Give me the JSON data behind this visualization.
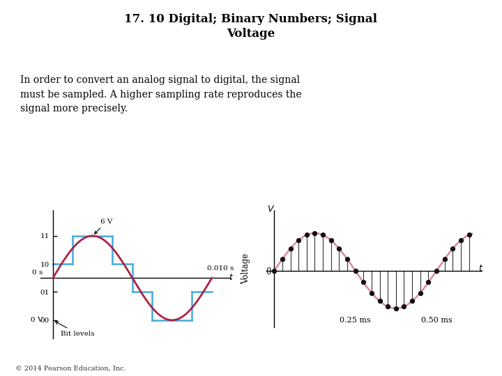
{
  "title": "17. 10 Digital; Binary Numbers; Signal\nVoltage",
  "body_text": "In order to convert an analog signal to digital, the signal\nmust be sampled. A higher sampling rate reproduces the\nsignal more precisely.",
  "copyright": "© 2014 Pearson Education, Inc.",
  "fig_bg": "#ffffff",
  "left_plot": {
    "sine_color": "#aa2244",
    "step_color": "#44aadd",
    "sine_lw": 2.0,
    "step_lw": 1.8,
    "ytick_labels": [
      "00",
      "01",
      "10",
      "11"
    ],
    "ytick_values": [
      -3,
      -1,
      1,
      3
    ]
  },
  "right_plot": {
    "sine_color": "#e08898",
    "dot_color": "#111111",
    "line_color": "#333333",
    "sine_lw": 1.8,
    "dot_size": 18,
    "sample_times_ms": [
      0,
      0.025,
      0.05,
      0.075,
      0.1,
      0.125,
      0.15,
      0.175,
      0.2,
      0.225,
      0.25,
      0.275,
      0.3,
      0.325,
      0.35,
      0.375,
      0.4,
      0.425,
      0.45,
      0.475,
      0.5,
      0.525,
      0.55,
      0.575,
      0.6
    ]
  }
}
